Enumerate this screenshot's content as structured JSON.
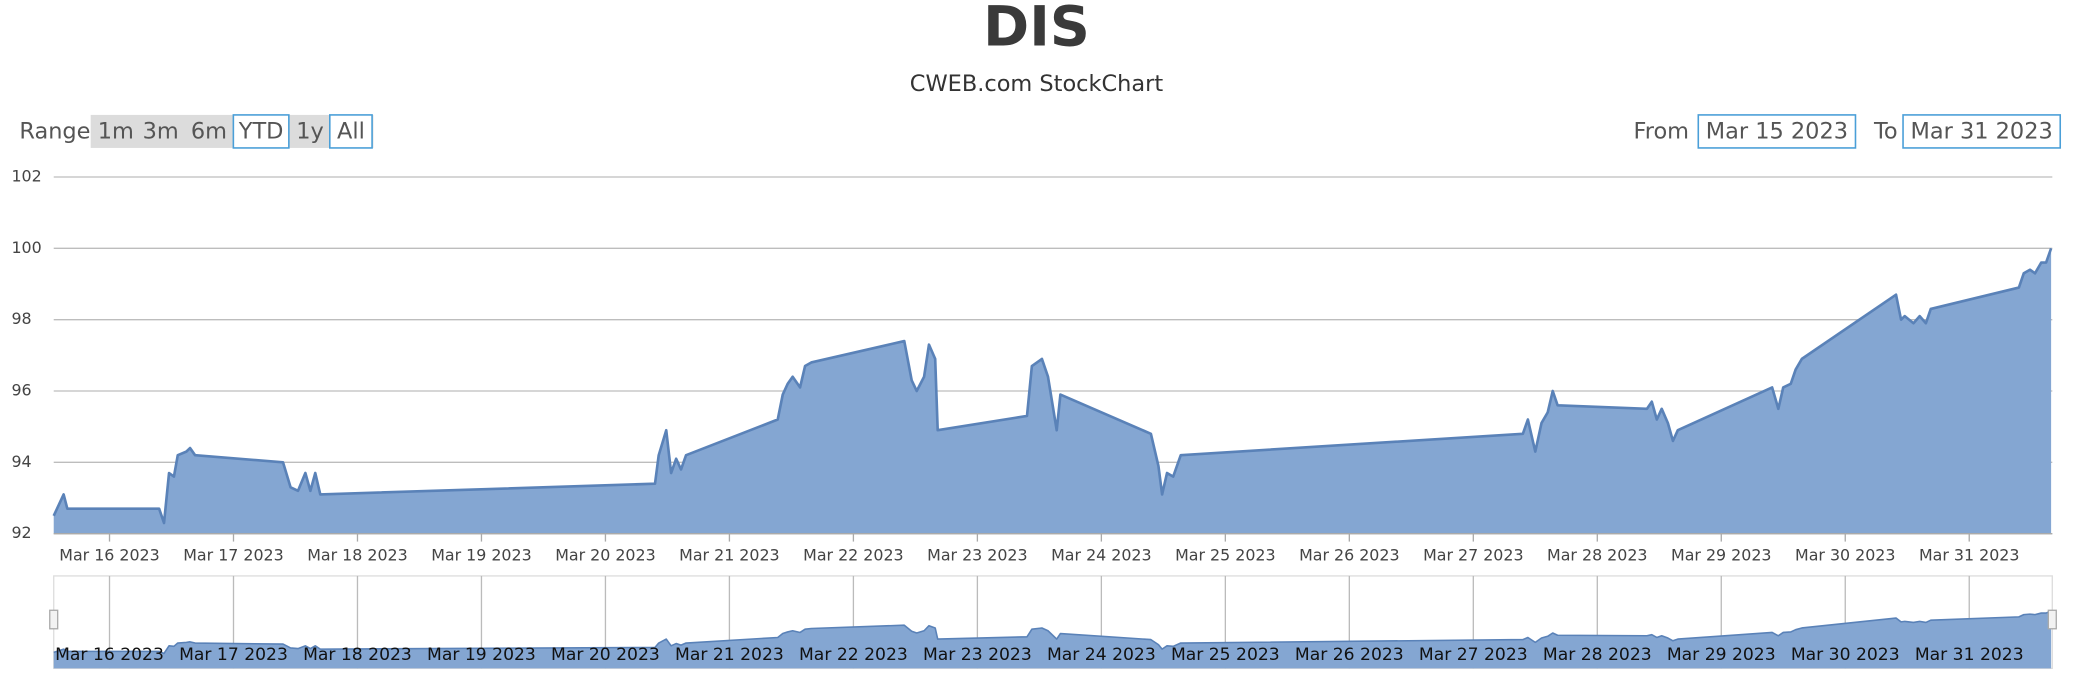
{
  "chart_data": {
    "type": "area",
    "title": "DIS",
    "subtitle": "CWEB.com StockChart",
    "range_selector": {
      "label": "Range",
      "buttons": [
        "1m",
        "3m",
        "6m",
        "YTD",
        "1y",
        "All"
      ]
    },
    "date_range": {
      "from_label": "From",
      "from": "Mar 15 2023",
      "to_label": "To",
      "to": "Mar 31 2023"
    },
    "color": "#84a6d2",
    "line_color": "#5a82b8",
    "grid": true,
    "xlim": [
      15.55,
      31.67
    ],
    "xticks": [
      {
        "value": 16,
        "label": "Mar 16 2023"
      },
      {
        "value": 17,
        "label": "Mar 17 2023"
      },
      {
        "value": 18,
        "label": "Mar 18 2023"
      },
      {
        "value": 19,
        "label": "Mar 19 2023"
      },
      {
        "value": 20,
        "label": "Mar 20 2023"
      },
      {
        "value": 21,
        "label": "Mar 21 2023"
      },
      {
        "value": 22,
        "label": "Mar 22 2023"
      },
      {
        "value": 23,
        "label": "Mar 23 2023"
      },
      {
        "value": 24,
        "label": "Mar 24 2023"
      },
      {
        "value": 25,
        "label": "Mar 25 2023"
      },
      {
        "value": 26,
        "label": "Mar 26 2023"
      },
      {
        "value": 27,
        "label": "Mar 27 2023"
      },
      {
        "value": 28,
        "label": "Mar 28 2023"
      },
      {
        "value": 29,
        "label": "Mar 29 2023"
      },
      {
        "value": 30,
        "label": "Mar 30 2023"
      },
      {
        "value": 31,
        "label": "Mar 31 2023"
      }
    ],
    "ylim": [
      92,
      102
    ],
    "yticks": [
      92,
      94,
      96,
      98,
      100,
      102
    ],
    "x": [
      15.55,
      15.63,
      15.66,
      16.4,
      16.44,
      16.48,
      16.52,
      16.55,
      16.62,
      16.65,
      16.69,
      17.4,
      17.46,
      17.52,
      17.58,
      17.62,
      17.66,
      17.7,
      20.4,
      20.43,
      20.49,
      20.53,
      20.57,
      20.61,
      20.65,
      21.39,
      21.43,
      21.47,
      21.51,
      21.57,
      21.61,
      21.66,
      22.41,
      22.47,
      22.51,
      22.57,
      22.61,
      22.66,
      22.68,
      23.4,
      23.44,
      23.52,
      23.57,
      23.64,
      23.67,
      24.4,
      24.46,
      24.49,
      24.53,
      24.58,
      24.64,
      27.4,
      27.44,
      27.5,
      27.55,
      27.6,
      27.64,
      27.68,
      28.4,
      28.44,
      28.48,
      28.52,
      28.57,
      28.61,
      28.65,
      29.41,
      29.46,
      29.5,
      29.56,
      29.6,
      29.65,
      30.41,
      30.45,
      30.48,
      30.55,
      30.6,
      30.65,
      30.69,
      31.4,
      31.44,
      31.49,
      31.53,
      31.58,
      31.62,
      31.66
    ],
    "values": [
      92.5,
      93.1,
      92.7,
      92.7,
      92.3,
      93.7,
      93.6,
      94.2,
      94.3,
      94.4,
      94.2,
      94.0,
      93.3,
      93.2,
      93.7,
      93.2,
      93.7,
      93.1,
      93.4,
      94.2,
      94.9,
      93.7,
      94.1,
      93.8,
      94.2,
      95.2,
      95.9,
      96.2,
      96.4,
      96.1,
      96.7,
      96.8,
      97.4,
      96.3,
      96.0,
      96.4,
      97.3,
      96.9,
      94.9,
      95.3,
      96.7,
      96.9,
      96.4,
      94.9,
      95.9,
      94.8,
      93.9,
      93.1,
      93.7,
      93.6,
      94.2,
      94.8,
      95.2,
      94.3,
      95.1,
      95.4,
      96.0,
      95.6,
      95.5,
      95.7,
      95.2,
      95.5,
      95.1,
      94.6,
      94.9,
      96.1,
      95.5,
      96.1,
      96.2,
      96.6,
      96.9,
      98.7,
      98.0,
      98.1,
      97.9,
      98.1,
      97.9,
      98.3,
      98.9,
      99.3,
      99.4,
      99.3,
      99.6,
      99.6,
      100.0
    ]
  }
}
